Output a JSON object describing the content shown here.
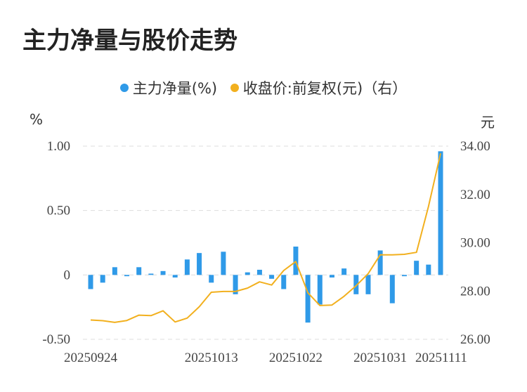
{
  "title": "主力净量与股价走势",
  "colors": {
    "bar": "#2f9ae8",
    "line": "#f2b01e",
    "grid": "#dddddd"
  },
  "chart_data": {
    "type": "bar+line",
    "title": "主力净量与股价走势",
    "legend": [
      {
        "name": "主力净量(%)",
        "color": "#2f9ae8"
      },
      {
        "name": "收盘价:前复权(元)（右）",
        "color": "#f2b01e"
      }
    ],
    "left_axis": {
      "unit": "%",
      "ticks": [
        "1.00",
        "0.50",
        "0",
        "-0.50"
      ],
      "ylim": [
        -0.5,
        1.0
      ]
    },
    "right_axis": {
      "unit": "元",
      "ticks": [
        "34.00",
        "32.00",
        "30.00",
        "28.00",
        "26.00"
      ],
      "ylim": [
        26.0,
        34.0
      ]
    },
    "x_tick_labels": [
      "20250924",
      "20251013",
      "20251022",
      "20251031",
      "20251111"
    ],
    "x_tick_index": [
      0,
      10,
      17,
      24,
      31
    ],
    "net_flow": [
      -0.11,
      -0.06,
      0.06,
      -0.01,
      0.06,
      0.01,
      0.03,
      -0.02,
      0.12,
      0.17,
      -0.06,
      0.18,
      -0.15,
      0.02,
      0.04,
      -0.03,
      -0.11,
      0.22,
      -0.37,
      -0.23,
      -0.02,
      0.05,
      -0.15,
      -0.15,
      0.19,
      -0.22,
      -0.01,
      0.11,
      0.08,
      0.96
    ],
    "close_price": [
      26.8,
      26.77,
      26.7,
      26.78,
      27.0,
      26.98,
      27.18,
      26.72,
      26.88,
      27.35,
      27.95,
      27.98,
      27.98,
      28.12,
      28.38,
      28.25,
      28.85,
      29.22,
      27.93,
      27.4,
      27.42,
      27.78,
      28.22,
      28.72,
      29.5,
      29.5,
      29.52,
      29.6,
      31.5,
      33.7
    ]
  }
}
